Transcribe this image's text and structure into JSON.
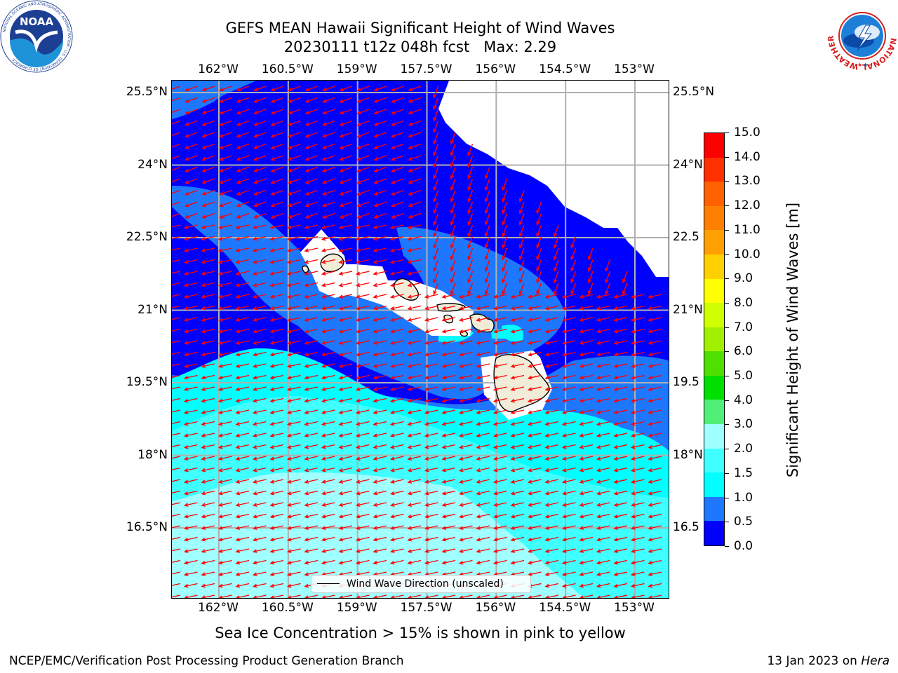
{
  "title": {
    "line1": "GEFS MEAN Hawaii Significant Height of Wind Waves",
    "line2": "20230111 t12z 048h fcst   Max: 2.29"
  },
  "axes": {
    "x_ticks": [
      "162°W",
      "160.5°W",
      "159°W",
      "157.5°W",
      "156°W",
      "154.5°W",
      "153°W"
    ],
    "x_values": [
      -162,
      -160.5,
      -159,
      -157.5,
      -156,
      -154.5,
      -153
    ],
    "y_ticks_left": [
      "25.5°N",
      "24°N",
      "22.5°N",
      "21°N",
      "19.5°N",
      "18°N",
      "16.5°N"
    ],
    "y_ticks_right": [
      "25.5°N",
      "24°N",
      "22.5",
      "21°N",
      "19.5",
      "18°N",
      "16.5"
    ],
    "y_values": [
      25.5,
      24,
      22.5,
      21,
      19.5,
      18,
      16.5
    ],
    "lon_range": [
      -163,
      -152.3
    ],
    "lat_range": [
      15.0,
      25.8
    ],
    "grid": true
  },
  "legend": {
    "label": "Wind Wave Direction (unscaled)",
    "placement": "lower-center"
  },
  "colorbar": {
    "label": "Significant Height of Wind Waves [m]",
    "ticks": [
      "0.0",
      "0.5",
      "1.0",
      "1.5",
      "2.0",
      "3.0",
      "4.0",
      "5.0",
      "6.0",
      "7.0",
      "8.0",
      "9.0",
      "10.0",
      "11.0",
      "12.0",
      "13.0",
      "14.0",
      "15.0"
    ],
    "colors": [
      "#0000ff",
      "#1e78ff",
      "#00ffff",
      "#40ffff",
      "#a0ffff",
      "#50f078",
      "#00e000",
      "#50e000",
      "#a0f000",
      "#d0ff00",
      "#ffff00",
      "#ffd000",
      "#ffa000",
      "#ff8000",
      "#ff6000",
      "#ff3000",
      "#ff0000"
    ]
  },
  "colors": {
    "land": "#f0ecd8",
    "arrow": "#ff0000",
    "grid": "#b0b0b0",
    "no_data": "#ffffff"
  },
  "chart_data": {
    "type": "heatmap",
    "variable": "Significant Height of Wind Waves",
    "units": "m",
    "max": 2.29,
    "wind_direction": "east-northeast trades (arrows pointing west-southwest)"
  },
  "notes": {
    "ice": "Sea Ice Concentration > 15% is shown in pink to yellow",
    "footer_left": "NCEP/EMC/Verification Post Processing Product Generation Branch",
    "footer_right_date": "13 Jan 2023 on ",
    "footer_right_host": "Hera"
  },
  "logos": {
    "noaa_text": "NOAA",
    "noaa_ring": "NATIONAL OCEANIC AND ATMOSPHERIC ADMINISTRATION · U.S. DEPARTMENT OF COMMERCE",
    "nws_ring": "NATIONAL WEATHER SERVICE"
  }
}
